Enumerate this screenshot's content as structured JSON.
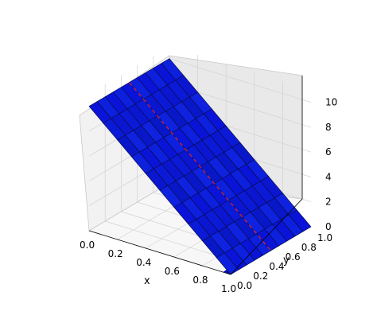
{
  "chart_data": {
    "type": "surface3d",
    "title": "",
    "xlabel": "x",
    "ylabel": "y",
    "zlabel": "",
    "xlim": [
      0.0,
      1.0
    ],
    "ylim": [
      0.0,
      1.0
    ],
    "zlim": [
      0,
      11
    ],
    "x_ticks": [
      "0.0",
      "0.2",
      "0.4",
      "0.6",
      "0.8",
      "1.0"
    ],
    "y_ticks": [
      "0.0",
      "0.2",
      "0.4",
      "0.6",
      "0.8",
      "1.0"
    ],
    "z_ticks": [
      "0",
      "2",
      "4",
      "6",
      "8",
      "10"
    ],
    "grid": true,
    "colormap": "jet",
    "surface_color": "#0a14d8",
    "dashed_line_color": "#dd2222",
    "description_values": {
      "surface_z_at_x0": 10,
      "surface_z_at_x1": 0,
      "grid_cells_x": 10,
      "grid_cells_y": 10
    }
  }
}
